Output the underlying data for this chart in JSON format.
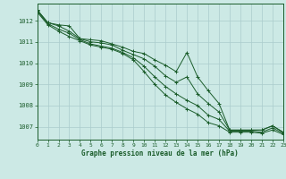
{
  "title": "Graphe pression niveau de la mer (hPa)",
  "background_color": "#cce9e5",
  "grid_color": "#aacccc",
  "line_color": "#1a5c2a",
  "xlim": [
    0,
    23
  ],
  "ylim": [
    1006.4,
    1012.8
  ],
  "yticks": [
    1007,
    1008,
    1009,
    1010,
    1011,
    1012
  ],
  "xticks": [
    0,
    1,
    2,
    3,
    4,
    5,
    6,
    7,
    8,
    9,
    10,
    11,
    12,
    13,
    14,
    15,
    16,
    17,
    18,
    19,
    20,
    21,
    22,
    23
  ],
  "series": [
    [
      1012.5,
      1011.9,
      1011.8,
      1011.75,
      1011.15,
      1011.1,
      1011.05,
      1010.9,
      1010.75,
      1010.55,
      1010.45,
      1010.15,
      1009.9,
      1009.6,
      1010.5,
      1009.35,
      1008.7,
      1008.1,
      1006.85,
      1006.85,
      1006.85,
      1006.85,
      1007.05,
      1006.75
    ],
    [
      1012.5,
      1011.9,
      1011.75,
      1011.5,
      1011.15,
      1011.0,
      1010.95,
      1010.85,
      1010.6,
      1010.4,
      1010.2,
      1009.85,
      1009.4,
      1009.1,
      1009.35,
      1008.55,
      1008.1,
      1007.7,
      1006.85,
      1006.85,
      1006.85,
      1006.85,
      1007.05,
      1006.75
    ],
    [
      1012.45,
      1011.85,
      1011.6,
      1011.4,
      1011.1,
      1010.9,
      1010.8,
      1010.7,
      1010.5,
      1010.25,
      1009.85,
      1009.35,
      1008.9,
      1008.55,
      1008.25,
      1008.0,
      1007.55,
      1007.35,
      1006.8,
      1006.8,
      1006.8,
      1006.75,
      1006.95,
      1006.7
    ],
    [
      1012.4,
      1011.8,
      1011.5,
      1011.25,
      1011.05,
      1010.85,
      1010.75,
      1010.65,
      1010.45,
      1010.15,
      1009.6,
      1009.0,
      1008.5,
      1008.15,
      1007.85,
      1007.6,
      1007.2,
      1007.05,
      1006.75,
      1006.75,
      1006.75,
      1006.7,
      1006.85,
      1006.65
    ]
  ]
}
